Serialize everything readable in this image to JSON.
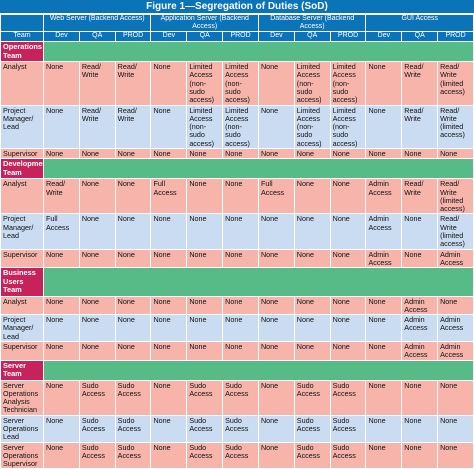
{
  "title": "Figure 1—Segregation of Duties (SoD)",
  "groups": [
    "Web Server (Backend Access)",
    "Application Server (Backend Access)",
    "Database Server (Backend Access)",
    "GUI Access"
  ],
  "header": {
    "team": "Team",
    "envs": [
      "Dev",
      "QA",
      "PROD",
      "Dev",
      "QA",
      "PROD",
      "Dev",
      "QA",
      "PROD",
      "Dev",
      "QA",
      "PROD"
    ]
  },
  "sections": [
    {
      "name": "Operations Team",
      "rows": [
        {
          "role": "Analyst",
          "cells": [
            "None",
            "Read/ Write",
            "Read/ Write",
            "None",
            "Limited Access (non-sudo access)",
            "Limited Access (non-sudo access)",
            "None",
            "Limited Access (non-sudo access)",
            "Limited Access (non-sudo access)",
            "None",
            "Read/ Write",
            "Read/ Write (limited access)"
          ]
        },
        {
          "role": "Project Manager/ Lead",
          "cells": [
            "None",
            "Read/ Write",
            "Read/ Write",
            "None",
            "Limited Access (non-sudo access)",
            "Limited Access (non-sudo access)",
            "None",
            "Limited Access (non-sudo access)",
            "Limited Access (non-sudo access)",
            "None",
            "Read/ Write",
            "Read/ Write (limited access)"
          ]
        },
        {
          "role": "Supervisor",
          "cells": [
            "None",
            "None",
            "None",
            "None",
            "None",
            "None",
            "None",
            "None",
            "None",
            "None",
            "None",
            "None"
          ]
        }
      ]
    },
    {
      "name": "Development Team",
      "rows": [
        {
          "role": "Analyst",
          "cells": [
            "Read/ Write",
            "None",
            "None",
            "Full Access",
            "None",
            "None",
            "Full Access",
            "None",
            "None",
            "Admin Access",
            "Read/ Write",
            "Read/ Write (limited access)"
          ]
        },
        {
          "role": "Project Manager/ Lead",
          "cells": [
            "Full Access",
            "None",
            "None",
            "None",
            "None",
            "None",
            "None",
            "None",
            "None",
            "Admin Access",
            "None",
            "Read/ Write (limited access)"
          ]
        },
        {
          "role": "Supervisor",
          "cells": [
            "None",
            "None",
            "None",
            "None",
            "None",
            "None",
            "None",
            "None",
            "None",
            "Admin Access",
            "None",
            "Admin Access"
          ]
        }
      ]
    },
    {
      "name": "Business Users Team",
      "rows": [
        {
          "role": "Analyst",
          "cells": [
            "None",
            "None",
            "None",
            "None",
            "None",
            "None",
            "None",
            "None",
            "None",
            "None",
            "Admin Access",
            "None"
          ]
        },
        {
          "role": "Project Manager/ Lead",
          "cells": [
            "None",
            "None",
            "None",
            "None",
            "None",
            "None",
            "None",
            "None",
            "None",
            "None",
            "Admin Access",
            "Admin Access"
          ]
        },
        {
          "role": "Supervisor",
          "cells": [
            "None",
            "None",
            "None",
            "None",
            "None",
            "None",
            "None",
            "None",
            "None",
            "None",
            "Admin Access",
            "Admin Access"
          ]
        }
      ]
    },
    {
      "name": "Server Team",
      "rows": [
        {
          "role": "Server Operations Analysis Technician",
          "cells": [
            "None",
            "Sudo Access",
            "Sudo Access",
            "None",
            "Sudo Access",
            "Sudo Access",
            "None",
            "Sudo Access",
            "Sudo Access",
            "None",
            "None",
            "None"
          ]
        },
        {
          "role": "Server Operations Lead",
          "cells": [
            "None",
            "Sudo Access",
            "Sudo Access",
            "None",
            "Sudo Access",
            "Sudo Access",
            "None",
            "Sudo Access",
            "Sudo Access",
            "None",
            "None",
            "None"
          ]
        },
        {
          "role": "Server Operations Supervisor",
          "cells": [
            "None",
            "Sudo Access",
            "Sudo Access",
            "None",
            "Sudo Access",
            "Sudo Access",
            "None",
            "Sudo Access",
            "Sudo Access",
            "None",
            "None",
            "None"
          ]
        }
      ]
    }
  ]
}
